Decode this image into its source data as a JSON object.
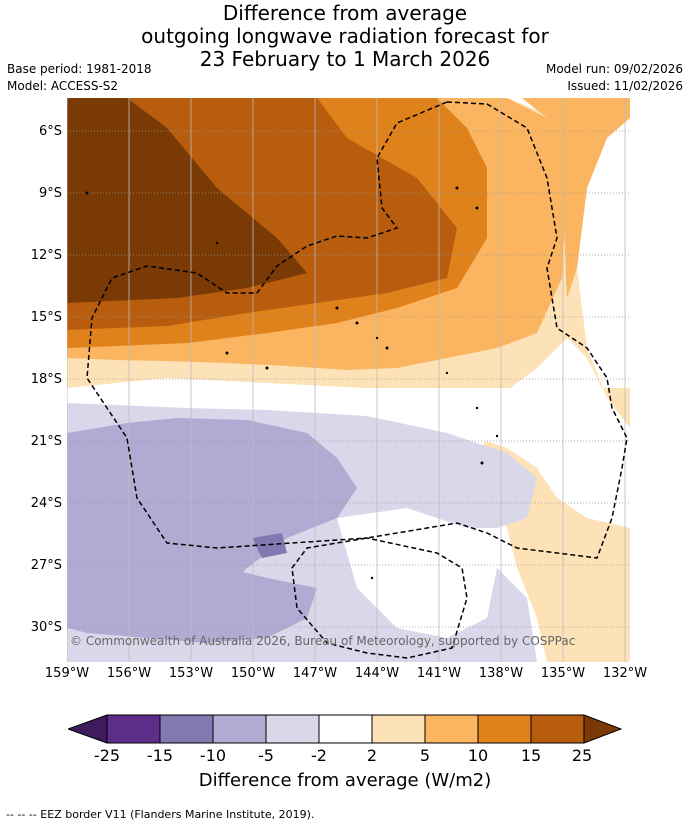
{
  "title": {
    "line1": "Difference from average",
    "line2": "outgoing longwave radiation forecast for",
    "line3": "23 February to 1 March 2026"
  },
  "meta": {
    "base_period": "Base period: 1981-2018",
    "model": "Model: ACCESS-S2",
    "model_run": "Model run: 09/02/2026",
    "issued": "Issued: 11/02/2026"
  },
  "map": {
    "lat_labels": [
      "6°S",
      "9°S",
      "12°S",
      "15°S",
      "18°S",
      "21°S",
      "24°S",
      "27°S",
      "30°S"
    ],
    "lon_labels": [
      "159°W",
      "156°W",
      "153°W",
      "150°W",
      "147°W",
      "144°W",
      "141°W",
      "138°W",
      "135°W",
      "132°W"
    ],
    "copyright": "© Commonwealth of Australia 2026, Bureau of Meteorology, supported by COSPPac",
    "colors": {
      "neg25": "#3f1a5c",
      "neg15": "#5e2d8a",
      "neg10": "#8478b0",
      "neg5": "#b2aad3",
      "neg2": "#d9d8ea",
      "zero": "#ffffff",
      "pos2": "#fde2b7",
      "pos5": "#fbb45f",
      "pos10": "#e0821b",
      "pos15": "#b85c0d",
      "pos25": "#7a3a06"
    }
  },
  "colorbar": {
    "ticks": [
      "-25",
      "-15",
      "-10",
      "-5",
      "-2",
      "2",
      "5",
      "10",
      "15",
      "25"
    ],
    "title": "Difference from average (W/m2)"
  },
  "footer": "-- -- -- EEZ border V11 (Flanders Marine Institute, 2019)."
}
